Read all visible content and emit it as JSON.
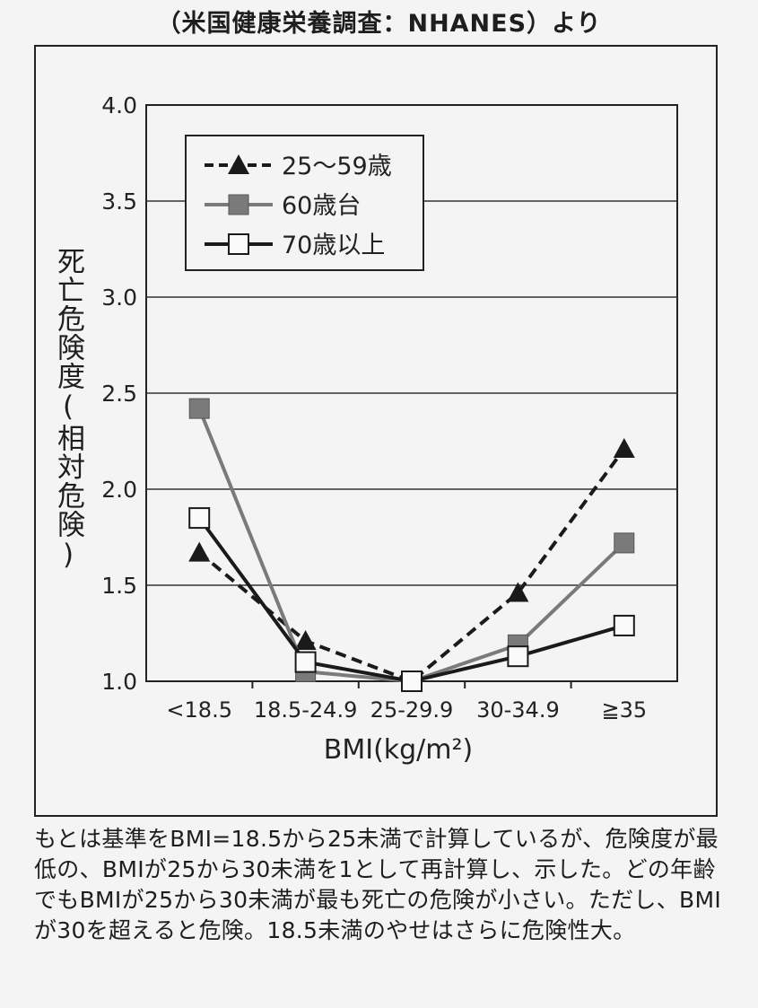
{
  "source_text": "（米国健康栄養調査：NHANES）より",
  "note": "もとは基準をBMI=18.5から25未満で計算しているが、危険度が最低の、BMIが25から30未満を1として再計算し、示した。どの年齢でもBMIが25から30未満が最も死亡の危険が小さい。ただし、BMIが30を超えると危険。18.5未満のやせはさらに危険性大。",
  "chart_data": {
    "type": "line",
    "title": "",
    "xlabel": "BMI(kg/m²)",
    "ylabel": "死亡危険度(相対危険)",
    "categories": [
      "<18.5",
      "18.5-24.9",
      "25-29.9",
      "30-34.9",
      "≧35"
    ],
    "ylim": [
      1.0,
      4.0
    ],
    "yticks": [
      "1.0",
      "1.5",
      "2.0",
      "2.5",
      "3.0",
      "3.5",
      "4.0"
    ],
    "grid": true,
    "legend_position": "top-left",
    "series": [
      {
        "name": "25～59歳",
        "marker": "triangle",
        "line": "dashed",
        "color": "#1a1a1a",
        "values": [
          1.67,
          1.21,
          1.0,
          1.46,
          2.21
        ]
      },
      {
        "name": "60歳台",
        "marker": "square-filled",
        "line": "solid",
        "color": "#7a7a7a",
        "values": [
          2.42,
          1.05,
          1.0,
          1.19,
          1.72
        ]
      },
      {
        "name": "70歳以上",
        "marker": "square-open",
        "line": "solid",
        "color": "#1a1a1a",
        "values": [
          1.85,
          1.1,
          1.0,
          1.13,
          1.29
        ]
      }
    ]
  }
}
